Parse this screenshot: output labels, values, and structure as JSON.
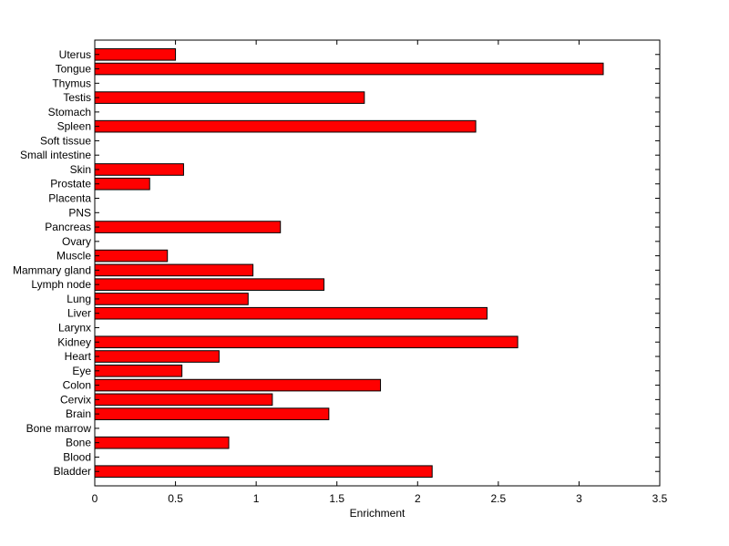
{
  "chart_data": {
    "type": "bar",
    "orientation": "horizontal",
    "title": "",
    "xlabel": "Enrichment",
    "ylabel": "",
    "xlim": [
      0,
      3.5
    ],
    "xticks": [
      "0",
      "0.5",
      "1",
      "1.5",
      "2",
      "2.5",
      "3",
      "3.5"
    ],
    "grid": false,
    "bar_color": "#ff0000",
    "categories": [
      "Uterus",
      "Tongue",
      "Thymus",
      "Testis",
      "Stomach",
      "Spleen",
      "Soft tissue",
      "Small intestine",
      "Skin",
      "Prostate",
      "Placenta",
      "PNS",
      "Pancreas",
      "Ovary",
      "Muscle",
      "Mammary gland",
      "Lymph node",
      "Lung",
      "Liver",
      "Larynx",
      "Kidney",
      "Heart",
      "Eye",
      "Colon",
      "Cervix",
      "Brain",
      "Bone marrow",
      "Bone",
      "Blood",
      "Bladder"
    ],
    "values": [
      0.5,
      3.15,
      0,
      1.67,
      0,
      2.36,
      0,
      0,
      0.55,
      0.34,
      0,
      0,
      1.15,
      0,
      0.45,
      0.98,
      1.42,
      0.95,
      2.43,
      0,
      2.62,
      0.77,
      0.54,
      1.77,
      1.1,
      1.45,
      0,
      0.83,
      0,
      2.09
    ]
  }
}
